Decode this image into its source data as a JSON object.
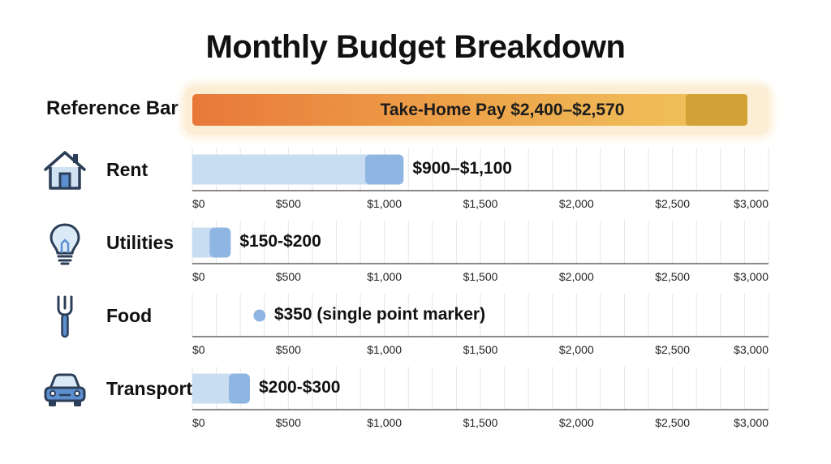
{
  "title": "Monthly Budget Breakdown",
  "reference": {
    "label": "Reference Bar",
    "text": "Take-Home Pay $2,400–$2,570",
    "min": 2400,
    "max": 2570,
    "color": "#e8783a"
  },
  "chart_data": {
    "type": "bar",
    "title": "Monthly Budget Breakdown",
    "xlim": [
      0,
      3000
    ],
    "tick_values": [
      0,
      500,
      1000,
      1500,
      2000,
      2500,
      3000
    ],
    "tick_labels": [
      "$0",
      "$500",
      "$1,000",
      "$1,500",
      "$2,000",
      "$2,500",
      "$3,000"
    ],
    "grid": true,
    "colors": {
      "range_light": "#c9ddf2",
      "range_dark": "#8fb6e2",
      "marker": "#8fb6e2"
    },
    "rows": [
      {
        "category": "Rent",
        "icon": "house-icon",
        "kind": "range",
        "min": 900,
        "max": 1100,
        "label": "$900–$1,100"
      },
      {
        "category": "Utilities",
        "icon": "lightbulb-icon",
        "kind": "range",
        "min": 150,
        "max": 200,
        "label": "$150-$200"
      },
      {
        "category": "Food",
        "icon": "fork-icon",
        "kind": "point",
        "value": 350,
        "label": "$350 (single point marker)"
      },
      {
        "category": "Transportation",
        "icon": "car-icon",
        "kind": "range",
        "min": 200,
        "max": 300,
        "label": "$200-$300"
      }
    ]
  }
}
